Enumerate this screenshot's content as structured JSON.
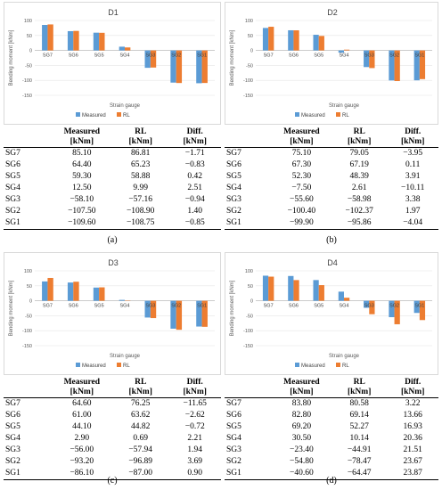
{
  "legend": {
    "measured": "Measured",
    "rl": "RL"
  },
  "colors": {
    "measured": "#5b9bd5",
    "rl": "#ed7d31"
  },
  "table_header": {
    "measured": "Measured",
    "rl": "RL",
    "diff": "Diff.",
    "unit": "[kNm]"
  },
  "chart_data": [
    {
      "type": "bar",
      "title": "D1",
      "panel_label": "(a)",
      "xlabel": "Strain gauge",
      "ylabel": "Bending moment [kNm]",
      "ylim": [
        -150,
        100
      ],
      "yticks": [
        100,
        50,
        0,
        -50,
        -100,
        -150
      ],
      "categories": [
        "SG7",
        "SG6",
        "SG5",
        "SG4",
        "SG3",
        "SG2",
        "SG1"
      ],
      "series": [
        {
          "name": "Measured",
          "values": [
            85.1,
            64.4,
            59.3,
            12.5,
            -58.1,
            -107.5,
            -109.6
          ]
        },
        {
          "name": "RL",
          "values": [
            86.81,
            65.23,
            58.88,
            9.99,
            -57.16,
            -108.9,
            -108.75
          ]
        }
      ],
      "table": [
        [
          "SG7",
          "85.10",
          "86.81",
          "−1.71"
        ],
        [
          "SG6",
          "64.40",
          "65.23",
          "−0.83"
        ],
        [
          "SG5",
          "59.30",
          "58.88",
          "0.42"
        ],
        [
          "SG4",
          "12.50",
          "9.99",
          "2.51"
        ],
        [
          "SG3",
          "−58.10",
          "−57.16",
          "−0.94"
        ],
        [
          "SG2",
          "−107.50",
          "−108.90",
          "1.40"
        ],
        [
          "SG1",
          "−109.60",
          "−108.75",
          "−0.85"
        ]
      ]
    },
    {
      "type": "bar",
      "title": "D2",
      "panel_label": "(b)",
      "xlabel": "Strain gauge",
      "ylabel": "Bending moment [kNm]",
      "ylim": [
        -150,
        100
      ],
      "yticks": [
        100,
        50,
        0,
        -50,
        -100,
        -150
      ],
      "categories": [
        "SG7",
        "SG6",
        "SG5",
        "SG4",
        "SG3",
        "SG2",
        "SG1"
      ],
      "series": [
        {
          "name": "Measured",
          "values": [
            75.1,
            67.3,
            52.3,
            -7.5,
            -55.6,
            -100.4,
            -99.9
          ]
        },
        {
          "name": "RL",
          "values": [
            79.05,
            67.19,
            48.39,
            2.61,
            -58.98,
            -102.37,
            -95.86
          ]
        }
      ],
      "table": [
        [
          "SG7",
          "75.10",
          "79.05",
          "−3.95"
        ],
        [
          "SG6",
          "67.30",
          "67.19",
          "0.11"
        ],
        [
          "SG5",
          "52.30",
          "48.39",
          "3.91"
        ],
        [
          "SG4",
          "−7.50",
          "2.61",
          "−10.11"
        ],
        [
          "SG3",
          "−55.60",
          "−58.98",
          "3.38"
        ],
        [
          "SG2",
          "−100.40",
          "−102.37",
          "1.97"
        ],
        [
          "SG1",
          "−99.90",
          "−95.86",
          "−4.04"
        ]
      ]
    },
    {
      "type": "bar",
      "title": "D3",
      "panel_label": "(c)",
      "xlabel": "Strain gauge",
      "ylabel": "Bending moment [kNm]",
      "ylim": [
        -150,
        100
      ],
      "yticks": [
        100,
        50,
        0,
        -50,
        -100,
        -150
      ],
      "categories": [
        "SG7",
        "SG6",
        "SG5",
        "SG4",
        "SG3",
        "SG2",
        "SG1"
      ],
      "series": [
        {
          "name": "Measured",
          "values": [
            64.6,
            61.0,
            44.1,
            2.9,
            -56.0,
            -93.2,
            -86.1
          ]
        },
        {
          "name": "RL",
          "values": [
            76.25,
            63.62,
            44.82,
            0.69,
            -57.94,
            -96.89,
            -87.0
          ]
        }
      ],
      "table": [
        [
          "SG7",
          "64.60",
          "76.25",
          "−11.65"
        ],
        [
          "SG6",
          "61.00",
          "63.62",
          "−2.62"
        ],
        [
          "SG5",
          "44.10",
          "44.82",
          "−0.72"
        ],
        [
          "SG4",
          "2.90",
          "0.69",
          "2.21"
        ],
        [
          "SG3",
          "−56.00",
          "−57.94",
          "1.94"
        ],
        [
          "SG2",
          "−93.20",
          "−96.89",
          "3.69"
        ],
        [
          "SG1",
          "−86.10",
          "−87.00",
          "0.90"
        ]
      ]
    },
    {
      "type": "bar",
      "title": "D4",
      "panel_label": "(d)",
      "xlabel": "Strain gauge",
      "ylabel": "Bending moment [kNm]",
      "ylim": [
        -150,
        100
      ],
      "yticks": [
        100,
        50,
        0,
        -50,
        -100,
        -150
      ],
      "categories": [
        "SG7",
        "SG6",
        "SG5",
        "SG4",
        "SG3",
        "SG2",
        "SG1"
      ],
      "series": [
        {
          "name": "Measured",
          "values": [
            83.8,
            82.8,
            69.2,
            30.5,
            -23.4,
            -54.8,
            -40.6
          ]
        },
        {
          "name": "RL",
          "values": [
            80.58,
            69.14,
            52.27,
            10.14,
            -44.91,
            -78.47,
            -64.47
          ]
        }
      ],
      "table": [
        [
          "SG7",
          "83.80",
          "80.58",
          "3.22"
        ],
        [
          "SG6",
          "82.80",
          "69.14",
          "13.66"
        ],
        [
          "SG5",
          "69.20",
          "52.27",
          "16.93"
        ],
        [
          "SG4",
          "30.50",
          "10.14",
          "20.36"
        ],
        [
          "SG3",
          "−23.40",
          "−44.91",
          "21.51"
        ],
        [
          "SG2",
          "−54.80",
          "−78.47",
          "23.67"
        ],
        [
          "SG1",
          "−40.60",
          "−64.47",
          "23.87"
        ]
      ]
    }
  ]
}
